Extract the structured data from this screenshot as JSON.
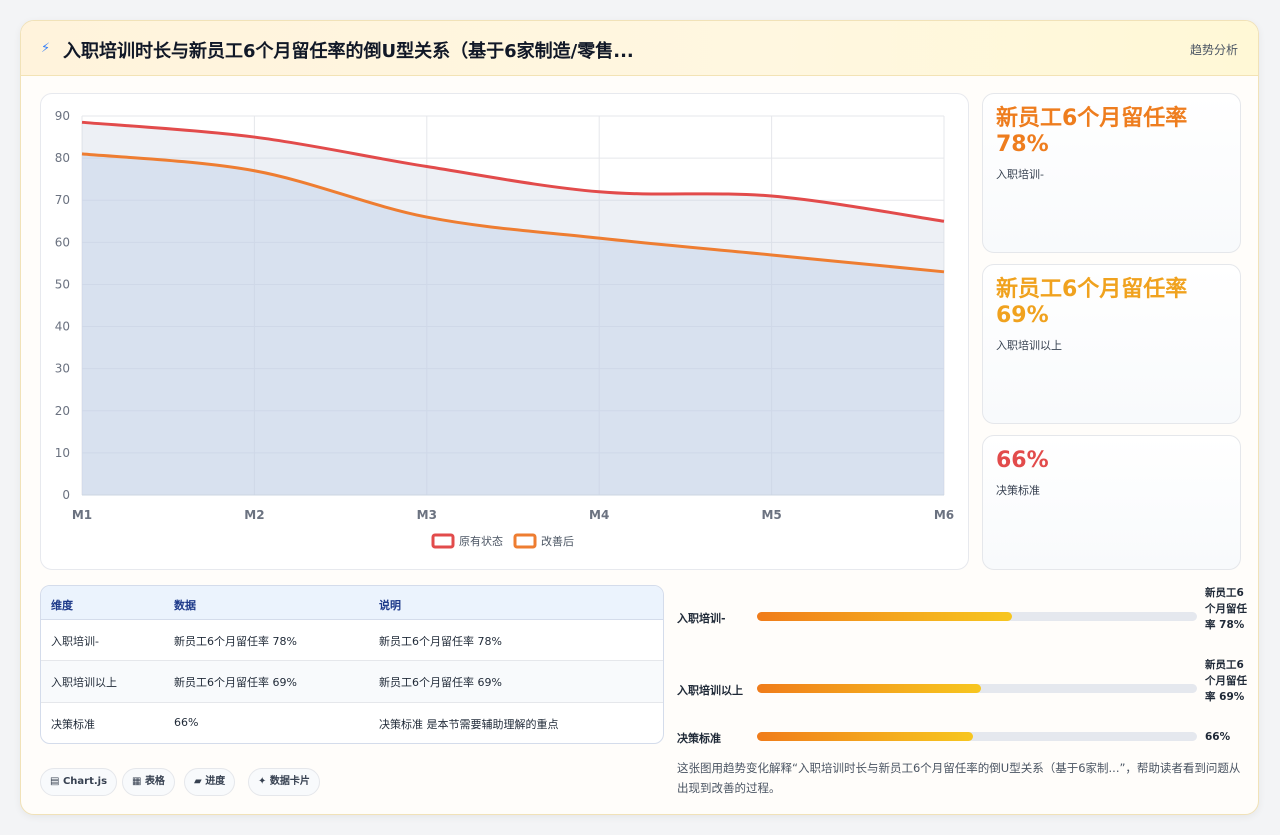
{
  "header": {
    "icon": "bolt-icon",
    "title": "入职培训时长与新员工6个月留任率的倒U型关系（基于6家制造/零售...",
    "tag": "趋势分析"
  },
  "chart_data": {
    "type": "area",
    "x": [
      "M1",
      "M2",
      "M3",
      "M4",
      "M5",
      "M6"
    ],
    "ylim": [
      0,
      90
    ],
    "yticks": [
      0,
      10,
      20,
      30,
      40,
      50,
      60,
      70,
      80,
      90
    ],
    "grid": true,
    "legend_position": "bottom",
    "series": [
      {
        "name": "原有状态",
        "values": [
          88.5,
          85,
          78,
          72,
          71,
          65
        ],
        "color": "#e24b4b"
      },
      {
        "name": "改善后",
        "values": [
          81,
          77,
          66,
          61,
          57,
          53
        ],
        "color": "#ee7d31"
      }
    ]
  },
  "kpis": [
    {
      "value": "新员工6个月留任率 78%",
      "label": "入职培训-",
      "color": "#ee7d1e"
    },
    {
      "value": "新员工6个月留任率 69%",
      "label": "入职培训以上",
      "color": "#f0a21e"
    },
    {
      "value": "66%",
      "label": "决策标准",
      "color": "#e24b4b"
    }
  ],
  "table": {
    "headers": [
      "维度",
      "数据",
      "说明"
    ],
    "rows": [
      [
        "入职培训-",
        "新员工6个月留任率 78%",
        "新员工6个月留任率 78%"
      ],
      [
        "入职培训以上",
        "新员工6个月留任率 69%",
        "新员工6个月留任率 69%"
      ],
      [
        "决策标准",
        "66%",
        "决策标准 是本节需要辅助理解的重点"
      ]
    ]
  },
  "progress": [
    {
      "label": "入职培训-",
      "value_text": "新员工6个月留任率 78%",
      "fraction": 0.58
    },
    {
      "label": "入职培训以上",
      "value_text": "新员工6个月留任率 69%",
      "fraction": 0.51
    },
    {
      "label": "决策标准",
      "value_text": "66%",
      "fraction": 0.49
    }
  ],
  "pills": [
    {
      "icon": "chart-icon",
      "glyph": "▤",
      "label": "Chart.js"
    },
    {
      "icon": "table-icon",
      "glyph": "▦",
      "label": "表格"
    },
    {
      "icon": "progress-icon",
      "glyph": "▰",
      "label": "进度"
    },
    {
      "icon": "sparkle-icon",
      "glyph": "✦",
      "label": "数据卡片"
    }
  ],
  "note": "这张图用趋势变化解释“入职培训时长与新员工6个月留任率的倒U型关系（基于6家制...”，帮助读者看到问题从出现到改善的过程。"
}
